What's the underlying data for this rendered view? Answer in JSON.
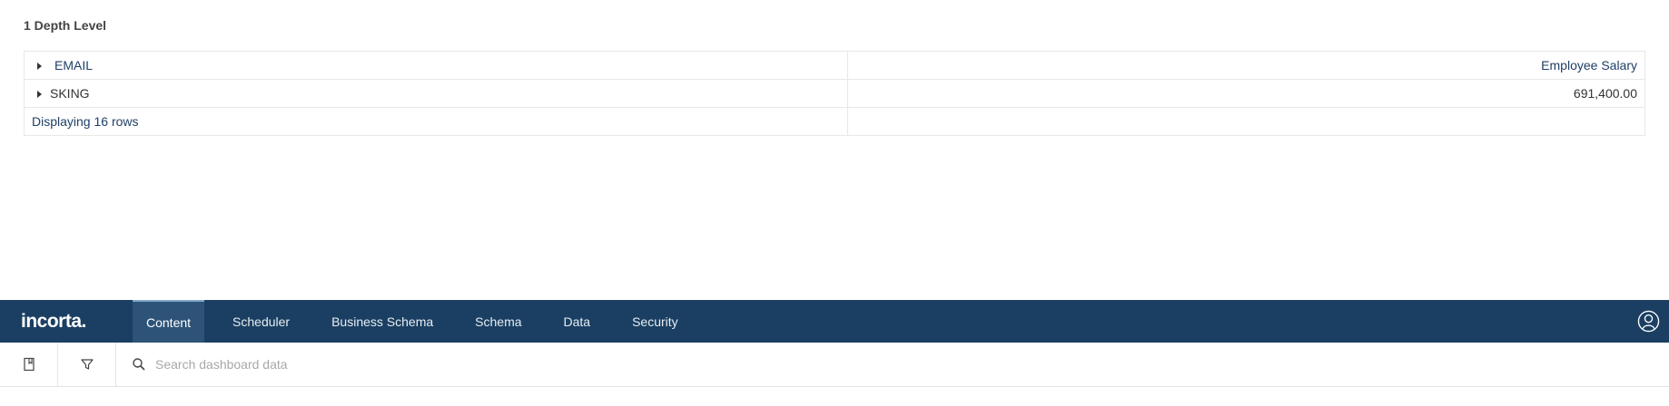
{
  "insight": {
    "title": "1 Depth Level",
    "column_header": "Employee Salary",
    "rows": [
      {
        "label": "EMAIL",
        "value": ""
      },
      {
        "label": "SKING",
        "value": "691,400.00"
      }
    ],
    "footer": "Displaying 16 rows"
  },
  "nav": {
    "brand": "incorta.",
    "tabs": [
      "Content",
      "Scheduler",
      "Business Schema",
      "Schema",
      "Data",
      "Security"
    ],
    "active_tab": "Content"
  },
  "toolbar": {
    "search_placeholder": "Search dashboard data"
  },
  "icons": [
    "caret-right-icon",
    "user-icon",
    "bookmark-icon",
    "filter-icon",
    "search-icon"
  ],
  "colors": {
    "nav_bg": "#1b3f62",
    "active_tab_bg": "#2d5378",
    "link_text": "#1f3f66"
  }
}
